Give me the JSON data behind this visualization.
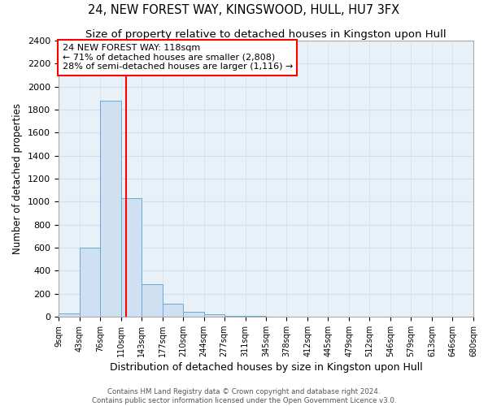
{
  "title": "24, NEW FOREST WAY, KINGSWOOD, HULL, HU7 3FX",
  "subtitle": "Size of property relative to detached houses in Kingston upon Hull",
  "xlabel": "Distribution of detached houses by size in Kingston upon Hull",
  "ylabel": "Number of detached properties",
  "footnote": "Contains HM Land Registry data © Crown copyright and database right 2024.\nContains public sector information licensed under the Open Government Licence v3.0.",
  "bin_edges": [
    9,
    43,
    76,
    110,
    143,
    177,
    210,
    244,
    277,
    311,
    345,
    378,
    412,
    445,
    479,
    512,
    546,
    579,
    613,
    646,
    680
  ],
  "bar_heights": [
    30,
    600,
    1880,
    1030,
    280,
    110,
    45,
    20,
    10,
    5,
    3,
    2,
    1,
    1,
    0,
    0,
    0,
    0,
    0,
    0
  ],
  "bar_color": "#cfe0f3",
  "bar_edge_color": "#6aaad4",
  "property_size": 118,
  "vline_color": "red",
  "ylim": [
    0,
    2400
  ],
  "annotation_text": "24 NEW FOREST WAY: 118sqm\n← 71% of detached houses are smaller (2,808)\n28% of semi-detached houses are larger (1,116) →",
  "annotation_box_color": "white",
  "annotation_box_edge_color": "red",
  "grid_color": "#d0dff0",
  "background_color": "#e8f0f8",
  "title_fontsize": 10.5,
  "subtitle_fontsize": 9.5,
  "tick_label_fontsize": 7,
  "ylabel_fontsize": 8.5,
  "xlabel_fontsize": 9
}
